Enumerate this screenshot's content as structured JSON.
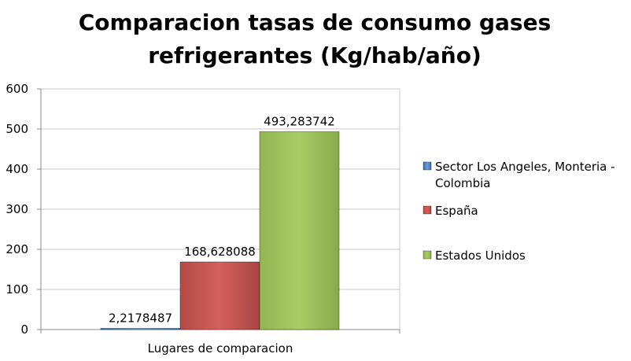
{
  "chart_data": {
    "type": "bar",
    "title_lines": [
      "Comparacion tasas de consumo  gases",
      "refrigerantes (Kg/hab/año)"
    ],
    "xlabel": "Lugares de comparacion",
    "ylabel": "",
    "categories": [
      "Lugares de comparacion"
    ],
    "ylim": [
      0,
      600
    ],
    "yticks": [
      0,
      100,
      200,
      300,
      400,
      500,
      600
    ],
    "grid": true,
    "legend_position": "right",
    "series": [
      {
        "name": "Sector Los Angeles, Monteria - Colombia",
        "legend_lines": [
          "Sector Los Angeles, Monteria -",
          "Colombia"
        ],
        "values": [
          2.2178487
        ],
        "label": "2,2178487",
        "color": "#4F81BD"
      },
      {
        "name": "España",
        "legend_lines": [
          "España"
        ],
        "values": [
          168.628088
        ],
        "label": "168,628088",
        "color": "#C0504D"
      },
      {
        "name": "Estados Unidos",
        "legend_lines": [
          "Estados Unidos"
        ],
        "values": [
          493.283742
        ],
        "label": "493,283742",
        "color": "#9BBB59"
      }
    ]
  }
}
